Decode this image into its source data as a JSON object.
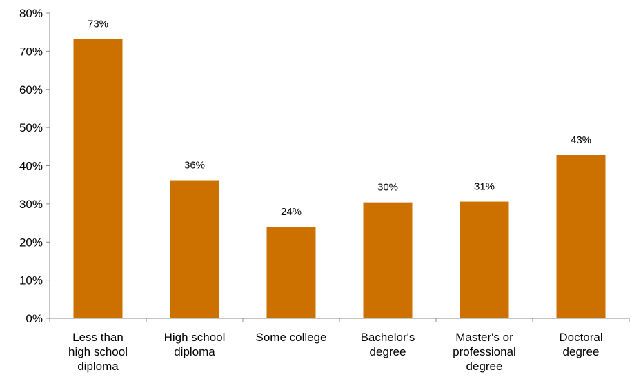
{
  "chart_data": {
    "type": "bar",
    "categories": [
      [
        "Less than",
        "high school",
        "diploma"
      ],
      [
        "High school",
        "diploma"
      ],
      [
        "Some college"
      ],
      [
        "Bachelor's",
        "degree"
      ],
      [
        "Master's or",
        "professional",
        "degree"
      ],
      [
        "Doctoral",
        "degree"
      ]
    ],
    "values": [
      73.2,
      36.2,
      24.0,
      30.4,
      30.6,
      42.8
    ],
    "data_labels": [
      "73%",
      "36%",
      "24%",
      "30%",
      "31%",
      "43%"
    ],
    "title": "",
    "xlabel": "",
    "ylabel": "",
    "ylim": [
      0,
      80
    ],
    "yticks": [
      0,
      10,
      20,
      30,
      40,
      50,
      60,
      70,
      80
    ],
    "ytick_labels": [
      "0%",
      "10%",
      "20%",
      "30%",
      "40%",
      "50%",
      "60%",
      "70%",
      "80%"
    ],
    "grid": false,
    "legend": "none",
    "bar_color": "#CC7000",
    "axis_color": "#8C8C8C"
  }
}
